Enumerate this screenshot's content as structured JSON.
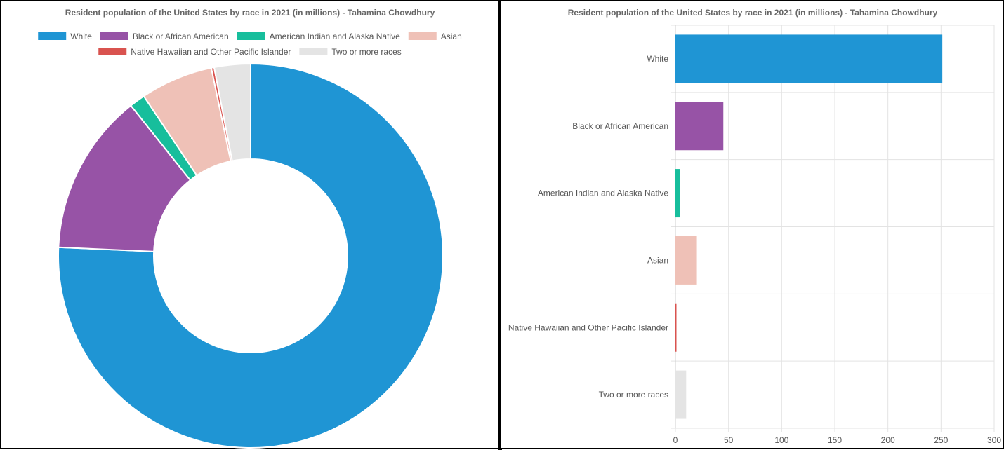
{
  "chart_data": [
    {
      "type": "pie",
      "style": "doughnut",
      "title": "Resident population of the United States by race in 2021 (in millions) - Tahamina Chowdhury",
      "categories": [
        "White",
        "Black or African American",
        "American Indian and Alaska Native",
        "Asian",
        "Native Hawaiian and Other Pacific Islander",
        "Two or more races"
      ],
      "values": [
        251.2,
        45.1,
        4.4,
        20.2,
        0.8,
        10.1
      ],
      "colors": [
        "#1f95d4",
        "#9753a6",
        "#17be9c",
        "#efc1b7",
        "#d9534f",
        "#e4e4e4"
      ],
      "legend": "top"
    },
    {
      "type": "bar",
      "orientation": "horizontal",
      "title": "Resident population of the United States by race in 2021 (in millions) - Tahamina Chowdhury",
      "categories": [
        "White",
        "Black or African American",
        "American Indian and Alaska Native",
        "Asian",
        "Native Hawaiian and Other Pacific Islander",
        "Two or more races"
      ],
      "values": [
        251.2,
        45.1,
        4.4,
        20.2,
        0.8,
        10.1
      ],
      "colors": [
        "#1f95d4",
        "#9753a6",
        "#17be9c",
        "#efc1b7",
        "#d9534f",
        "#e4e4e4"
      ],
      "xlim": [
        0,
        300
      ],
      "xticks": [
        0,
        50,
        100,
        150,
        200,
        250,
        300
      ],
      "grid": true
    }
  ]
}
